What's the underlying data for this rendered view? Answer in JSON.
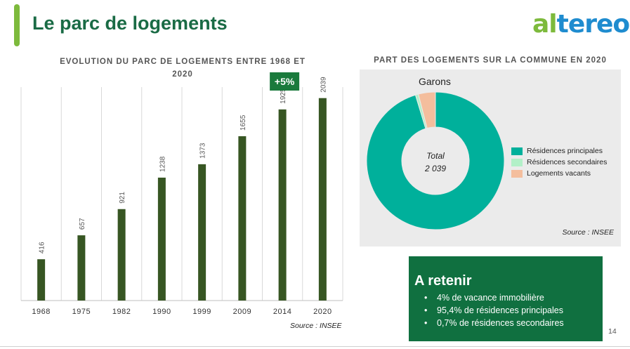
{
  "header": {
    "title": "Le parc de logements",
    "logo_prefix": "al",
    "logo_suffix": "tereo"
  },
  "colors": {
    "title_green": "#1a6b45",
    "accent_green": "#7dba3c",
    "bar_green": "#375623",
    "teal": "#00b09b",
    "mint": "#b2f0c8",
    "peach": "#f4be9d",
    "box_green": "#107040"
  },
  "bar_chart": {
    "title": "EVOLUTION DU PARC DE LOGEMENTS ENTRE 1968 ET 2020",
    "badge": "+5%",
    "source": "Source : INSEE"
  },
  "pie_chart": {
    "title": "PART DES LOGEMENTS SUR LA COMMUNE EN 2020",
    "place": "Garons",
    "total_label": "Total",
    "total_value": "2 039",
    "source": "Source : INSEE"
  },
  "retain": {
    "title": "A retenir",
    "items": [
      "4% de vacance immobilière",
      "95,4% de résidences principales",
      "0,7% de résidences secondaires"
    ]
  },
  "page_number": "14",
  "chart_data": [
    {
      "type": "bar",
      "title": "EVOLUTION DU PARC DE LOGEMENTS ENTRE 1968 ET 2020",
      "categories": [
        "1968",
        "1975",
        "1982",
        "1990",
        "1999",
        "2009",
        "2014",
        "2020"
      ],
      "values": [
        416,
        657,
        921,
        1238,
        1373,
        1655,
        1925,
        2039
      ],
      "annotation": "+5%",
      "grid": true,
      "xlabel": "",
      "ylabel": ""
    },
    {
      "type": "pie",
      "title": "PART DES LOGEMENTS SUR LA COMMUNE EN 2020",
      "subtitle": "Garons",
      "donut": true,
      "center_text": [
        "Total",
        "2 039"
      ],
      "series": [
        {
          "name": "Résidences principales",
          "value": 95.4,
          "color": "#00b09b"
        },
        {
          "name": "Résidences secondaires",
          "value": 0.7,
          "color": "#b2f0c8"
        },
        {
          "name": "Logements vacants",
          "value": 4.0,
          "color": "#f4be9d"
        }
      ],
      "legend_position": "right"
    }
  ]
}
